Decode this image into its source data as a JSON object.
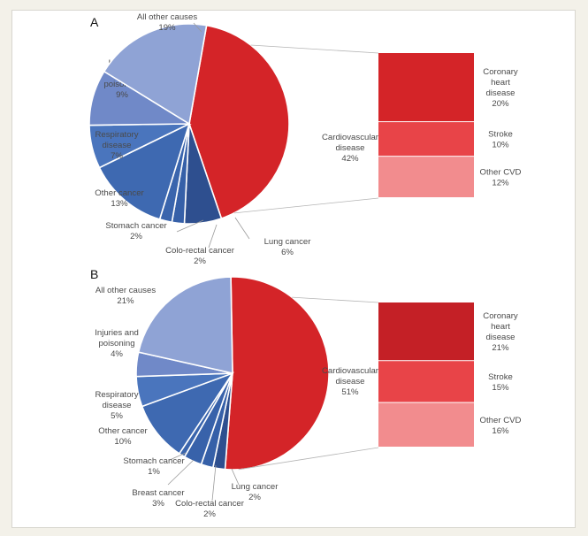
{
  "chart_data": [
    {
      "type": "pie",
      "panel": "A",
      "slices": [
        {
          "label": "Cardiovascular disease",
          "label_lines": [
            "Cardiovascular",
            "disease"
          ],
          "value": 42,
          "value_text": "42%",
          "color": "#d42428"
        },
        {
          "label": "Lung cancer",
          "label_lines": [
            "Lung cancer"
          ],
          "value": 6,
          "value_text": "6%",
          "color": "#2e4f8f"
        },
        {
          "label": "Colo-rectal cancer",
          "label_lines": [
            "Colo-rectal cancer"
          ],
          "value": 2,
          "value_text": "2%",
          "color": "#3660a8"
        },
        {
          "label": "Stomach cancer",
          "label_lines": [
            "Stomach cancer"
          ],
          "value": 2,
          "value_text": "2%",
          "color": "#3a65ad"
        },
        {
          "label": "Other cancer",
          "label_lines": [
            "Other cancer"
          ],
          "value": 13,
          "value_text": "13%",
          "color": "#3e69b1"
        },
        {
          "label": "Respiratory disease",
          "label_lines": [
            "Respiratory",
            "disease"
          ],
          "value": 7,
          "value_text": "7%",
          "color": "#4a75bd"
        },
        {
          "label": "Injuries and poisoning",
          "label_lines": [
            "Injuries",
            "and",
            "poisoning"
          ],
          "value": 9,
          "value_text": "9%",
          "color": "#7089c8"
        },
        {
          "label": "All other causes",
          "label_lines": [
            "All other causes"
          ],
          "value": 19,
          "value_text": "19%",
          "color": "#8fa3d5"
        }
      ],
      "breakdown": [
        {
          "label": "Coronary heart disease",
          "label_lines": [
            "Coronary",
            "heart",
            "disease"
          ],
          "value": 20,
          "value_text": "20%",
          "color": "#d42428"
        },
        {
          "label": "Stroke",
          "label_lines": [
            "Stroke"
          ],
          "value": 10,
          "value_text": "10%",
          "color": "#e84448"
        },
        {
          "label": "Other CVD",
          "label_lines": [
            "Other CVD"
          ],
          "value": 12,
          "value_text": "12%",
          "color": "#f28c8e"
        }
      ]
    },
    {
      "type": "pie",
      "panel": "B",
      "slices": [
        {
          "label": "Cardiovascular disease",
          "label_lines": [
            "Cardiovascular",
            "disease"
          ],
          "value": 51,
          "value_text": "51%",
          "color": "#d42428"
        },
        {
          "label": "Lung cancer",
          "label_lines": [
            "Lung cancer"
          ],
          "value": 2,
          "value_text": "2%",
          "color": "#2e4f8f"
        },
        {
          "label": "Colo-rectal cancer",
          "label_lines": [
            "Colo-rectal cancer"
          ],
          "value": 2,
          "value_text": "2%",
          "color": "#3660a8"
        },
        {
          "label": "Breast cancer",
          "label_lines": [
            "Breast cancer"
          ],
          "value": 3,
          "value_text": "3%",
          "color": "#3862aa"
        },
        {
          "label": "Stomach cancer",
          "label_lines": [
            "Stomach cancer"
          ],
          "value": 1,
          "value_text": "1%",
          "color": "#3a65ad"
        },
        {
          "label": "Other cancer",
          "label_lines": [
            "Other cancer"
          ],
          "value": 10,
          "value_text": "10%",
          "color": "#3e69b1"
        },
        {
          "label": "Respiratory disease",
          "label_lines": [
            "Respiratory",
            "disease"
          ],
          "value": 5,
          "value_text": "5%",
          "color": "#4a75bd"
        },
        {
          "label": "Injuries and poisoning",
          "label_lines": [
            "Injuries and",
            "poisoning"
          ],
          "value": 4,
          "value_text": "4%",
          "color": "#7089c8"
        },
        {
          "label": "All other causes",
          "label_lines": [
            "All other causes"
          ],
          "value": 21,
          "value_text": "21%",
          "color": "#8fa3d5"
        }
      ],
      "breakdown": [
        {
          "label": "Coronary heart disease",
          "label_lines": [
            "Coronary",
            "heart",
            "disease"
          ],
          "value": 21,
          "value_text": "21%",
          "color": "#c42026"
        },
        {
          "label": "Stroke",
          "label_lines": [
            "Stroke"
          ],
          "value": 15,
          "value_text": "15%",
          "color": "#e84448"
        },
        {
          "label": "Other CVD",
          "label_lines": [
            "Other CVD"
          ],
          "value": 16,
          "value_text": "16%",
          "color": "#f28c8e"
        }
      ]
    }
  ]
}
